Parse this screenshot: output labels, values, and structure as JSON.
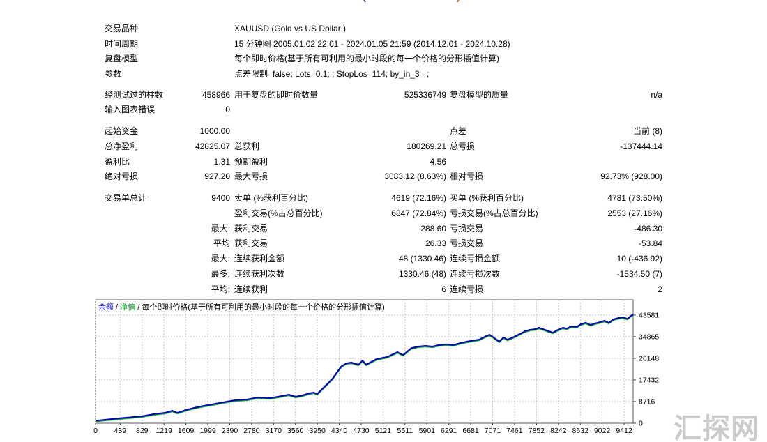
{
  "header": {
    "clipped_title_left": "(",
    "clipped_title_right": ")"
  },
  "report": {
    "rows": [
      {
        "l1": "交易品种",
        "v1": "",
        "wide": "XAUUSD (Gold vs US Dollar )"
      },
      {
        "l1": "时间周期",
        "v1": "",
        "wide": "15 分钟图 2005.01.02 22:01 - 2024.01.05 21:59 (2014.12.01 - 2024.10.28)"
      },
      {
        "l1": "复盘模型",
        "v1": "",
        "wide": "每个即时价格(基于所有可利用的最小时段的每一个价格的分形插值计算)"
      },
      {
        "l1": "参数",
        "v1": "",
        "wide": "点差限制=false; Lots=0.1; ; StopLos=114; by_in_3= ;"
      },
      {
        "gap": 8
      },
      {
        "l1": "经测试过的柱数",
        "v1": "458966",
        "l2": "用于复盘的即时价数量",
        "v2": "525336749",
        "l3": "复盘模型的质量",
        "v3": "n/a"
      },
      {
        "l1": "输入图表错误",
        "v1": "0",
        "l2": "",
        "v2": "",
        "l3": "",
        "v3": ""
      },
      {
        "gap": 9
      },
      {
        "l1": "起始资金",
        "v1": "1000.00",
        "l2": "",
        "v2": "",
        "l3": "点差",
        "v3": "当前 (8)"
      },
      {
        "l1": "总净盈利",
        "v1": "42825.07",
        "l2": "总获利",
        "v2": "180269.21",
        "l3": "总亏损",
        "v3": "-137444.14"
      },
      {
        "l1": "盈利比",
        "v1": "1.31",
        "l2": "预期盈利",
        "v2": "4.56",
        "l3": "",
        "v3": ""
      },
      {
        "l1": "绝对亏损",
        "v1": "927.20",
        "l2": "最大亏损",
        "v2": "3083.12 (8.63%)",
        "l3": "相对亏损",
        "v3": "92.73% (928.00)"
      },
      {
        "gap": 9.5
      },
      {
        "l1": "交易单总计",
        "v1": "9400",
        "l2": "卖单 (%获利百分比)",
        "v2": "4619 (72.16%)",
        "l3": "买单 (%获利百分比)",
        "v3": "4781 (73.50%)"
      },
      {
        "l1": "",
        "v1": "",
        "l2": "盈利交易(%占总百分比)",
        "v2": "6847 (72.84%)",
        "l3": "亏损交易(%占总百分比)",
        "v3": "2553 (27.16%)"
      },
      {
        "l1": "",
        "v1": "最大:",
        "l2": "获利交易",
        "v2": "288.60",
        "l3": "亏损交易",
        "v3": "-486.30"
      },
      {
        "l1": "",
        "v1": "平均",
        "l2": "获利交易",
        "v2": "26.33",
        "l3": "亏损交易",
        "v3": "-53.84"
      },
      {
        "l1": "",
        "v1": "最大:",
        "l2": "连续获利金额",
        "v2": "48 (1330.46)",
        "l3": "连续亏损金额",
        "v3": "10 (-436.92)"
      },
      {
        "l1": "",
        "v1": "最多:",
        "l2": "连续获利次数",
        "v2": "1330.46 (48)",
        "l3": "连续亏损次数",
        "v3": "-1534.50 (7)"
      },
      {
        "l1": "",
        "v1": "平均:",
        "l2": "连续获利",
        "v2": "6",
        "l3": "连续亏损",
        "v3": "2"
      }
    ]
  },
  "chart_data": {
    "type": "line",
    "legend": {
      "balance_label": "余额",
      "separator": " / ",
      "equity_label": "净值",
      "model_label": "每个即时价格(基于所有可利用的最小时段的每一个价格的分形插值计算)"
    },
    "x_ticks": [
      0,
      439,
      829,
      1219,
      1609,
      1999,
      2390,
      2780,
      3170,
      3560,
      3950,
      4340,
      4730,
      5121,
      5511,
      5901,
      6291,
      6681,
      7071,
      7461,
      7852,
      8242,
      8632,
      9022,
      9412
    ],
    "y_ticks": [
      0,
      8716,
      17432,
      26148,
      34865,
      43581
    ],
    "x_range": [
      0,
      9573
    ],
    "y_range": [
      0,
      49740
    ],
    "grid": "dashed",
    "colors": {
      "balance": "#0000b4",
      "equity": "#00aa22",
      "grid": "#c9c9c9",
      "border": "#5a5a5a",
      "axis_text": "#000000"
    },
    "series": [
      {
        "name": "余额",
        "points": [
          [
            0,
            1000
          ],
          [
            410,
            1960
          ],
          [
            830,
            2810
          ],
          [
            1030,
            3650
          ],
          [
            1240,
            4210
          ],
          [
            1366,
            5050
          ],
          [
            1453,
            4210
          ],
          [
            1651,
            5620
          ],
          [
            1862,
            6740
          ],
          [
            2074,
            7580
          ],
          [
            2272,
            8430
          ],
          [
            2483,
            9270
          ],
          [
            2694,
            9550
          ],
          [
            2893,
            10400
          ],
          [
            3104,
            10120
          ],
          [
            3315,
            10960
          ],
          [
            3439,
            11520
          ],
          [
            3563,
            10680
          ],
          [
            3688,
            11240
          ],
          [
            3812,
            12080
          ],
          [
            3886,
            12360
          ],
          [
            3948,
            11800
          ],
          [
            4035,
            13770
          ],
          [
            4135,
            16000
          ],
          [
            4222,
            17980
          ],
          [
            4309,
            20790
          ],
          [
            4383,
            23040
          ],
          [
            4470,
            24170
          ],
          [
            4557,
            24450
          ],
          [
            4681,
            23600
          ],
          [
            4755,
            25300
          ],
          [
            4818,
            23600
          ],
          [
            5004,
            25850
          ],
          [
            5190,
            26700
          ],
          [
            5376,
            28650
          ],
          [
            5476,
            27500
          ],
          [
            5625,
            30300
          ],
          [
            5749,
            30900
          ],
          [
            5873,
            31200
          ],
          [
            5997,
            30900
          ],
          [
            6121,
            31500
          ],
          [
            6245,
            31800
          ],
          [
            6370,
            31500
          ],
          [
            6494,
            32300
          ],
          [
            6618,
            32900
          ],
          [
            6742,
            33400
          ],
          [
            6829,
            33700
          ],
          [
            6953,
            35100
          ],
          [
            7015,
            35700
          ],
          [
            7077,
            34800
          ],
          [
            7189,
            32900
          ],
          [
            7263,
            34600
          ],
          [
            7337,
            33700
          ],
          [
            7450,
            34800
          ],
          [
            7574,
            36200
          ],
          [
            7648,
            37100
          ],
          [
            7735,
            37650
          ],
          [
            7822,
            37900
          ],
          [
            7897,
            38500
          ],
          [
            8070,
            37100
          ],
          [
            8145,
            36500
          ],
          [
            8232,
            37650
          ],
          [
            8319,
            38500
          ],
          [
            8394,
            38200
          ],
          [
            8480,
            39060
          ],
          [
            8567,
            38800
          ],
          [
            8642,
            39900
          ],
          [
            8729,
            40500
          ],
          [
            8815,
            39600
          ],
          [
            8890,
            40200
          ],
          [
            8977,
            40700
          ],
          [
            9064,
            41300
          ],
          [
            9138,
            40500
          ],
          [
            9225,
            41900
          ],
          [
            9312,
            42400
          ],
          [
            9386,
            42700
          ],
          [
            9473,
            42100
          ],
          [
            9535,
            43300
          ],
          [
            9573,
            43825
          ]
        ]
      },
      {
        "name": "净值",
        "overlaps": "余额"
      }
    ]
  },
  "watermark": {
    "text": "汇探网"
  }
}
